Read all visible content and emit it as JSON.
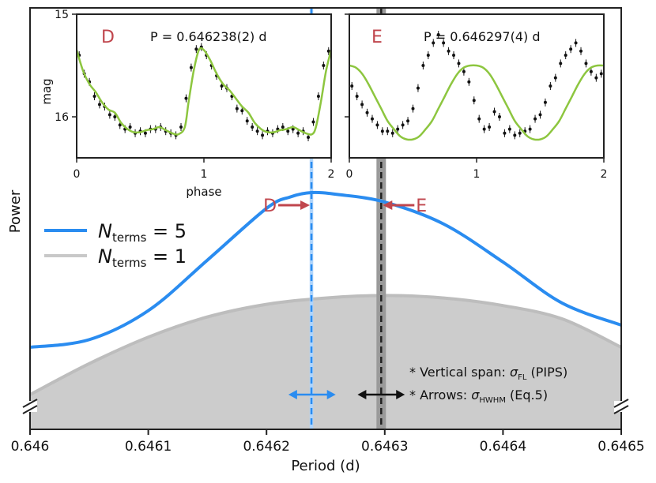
{
  "chart_data": {
    "main": {
      "type": "line",
      "xlabel": "Period (d)",
      "ylabel": "Power",
      "xlim": [
        0.646,
        0.6465
      ],
      "x_ticks": [
        0.646,
        0.6461,
        0.6462,
        0.6463,
        0.6464,
        0.6465
      ],
      "tick_labels": [
        "0.646",
        "0.6461",
        "0.6462",
        "0.6463",
        "0.6464",
        "0.6465"
      ],
      "ylim": [
        0,
        1
      ],
      "series": [
        {
          "name_parts": [
            "N",
            "terms",
            " = 5"
          ],
          "color": "#2a8cf0",
          "x": [
            0.646,
            0.64605,
            0.6461,
            0.64615,
            0.6462,
            0.64622,
            0.646238,
            0.64626,
            0.6463,
            0.64635,
            0.6464,
            0.64645,
            0.6465
          ],
          "y": [
            0.2,
            0.224,
            0.316,
            0.476,
            0.64,
            0.676,
            0.69,
            0.684,
            0.66,
            0.59,
            0.47,
            0.34,
            0.27
          ]
        },
        {
          "name_parts": [
            "N",
            "terms",
            " = 1"
          ],
          "color": "#bdbdbd",
          "fill": "#cccccc",
          "x": [
            0.646,
            0.64605,
            0.6461,
            0.64615,
            0.6462,
            0.64625,
            0.6463,
            0.64635,
            0.6464,
            0.64645,
            0.6465
          ],
          "y": [
            0.05,
            0.148,
            0.232,
            0.296,
            0.336,
            0.356,
            0.364,
            0.356,
            0.332,
            0.29,
            0.2
          ]
        }
      ],
      "annotations": {
        "D": {
          "label": "D",
          "x": 0.646238,
          "color": "#c0464d",
          "line_color": "#2a8cf0",
          "span": [
            0.6462365,
            0.6462395
          ],
          "span_color": "#aed4fb",
          "hwhm_arrow": [
            0.6462185,
            0.6462585
          ],
          "arrow_color": "#2a8cf0"
        },
        "E": {
          "label": "E",
          "x": 0.646297,
          "color": "#c0464d",
          "line_color": "#222222",
          "span": [
            0.646293,
            0.646301
          ],
          "span_color": "#9a9a9a",
          "hwhm_arrow": [
            0.646277,
            0.646317
          ],
          "arrow_color": "#111111"
        }
      },
      "notes": [
        {
          "prefix": "* Vertical span: ",
          "sym": "σ",
          "sub": "FL",
          "suffix": " (PIPS)"
        },
        {
          "prefix": "* Arrows: ",
          "sym": "σ",
          "sub": "HWHM",
          "suffix": " (Eq.5)"
        }
      ]
    },
    "insets": [
      {
        "panel": "D",
        "label": "D",
        "label_color": "#c0464d",
        "period_text": "P = 0.646238(2) d",
        "xlim": [
          0,
          2
        ],
        "x_ticks": [
          0,
          1,
          2
        ],
        "x_tick_labels": [
          "0",
          "1",
          "2"
        ],
        "xlabel": "phase",
        "ylabel": "mag",
        "ylim": [
          15.0,
          16.4
        ],
        "y_ticks": [
          15,
          16
        ],
        "y_tick_labels": [
          "15",
          "16"
        ],
        "fit_color": "#8dc63f",
        "fit": {
          "x": [
            0,
            0.05,
            0.1,
            0.15,
            0.2,
            0.25,
            0.3,
            0.35,
            0.4,
            0.45,
            0.5,
            0.55,
            0.6,
            0.65,
            0.7,
            0.75,
            0.8,
            0.85,
            0.88,
            0.92,
            0.96,
            1.0,
            1.05,
            1.1,
            1.15,
            1.2,
            1.25,
            1.3,
            1.35,
            1.4,
            1.45,
            1.5,
            1.55,
            1.6,
            1.65,
            1.7,
            1.75,
            1.8,
            1.85,
            1.88,
            1.92,
            1.96,
            2.0
          ],
          "y": [
            15.35,
            15.55,
            15.68,
            15.76,
            15.86,
            15.93,
            15.96,
            16.06,
            16.12,
            16.15,
            16.15,
            16.13,
            16.12,
            16.1,
            16.13,
            16.16,
            16.17,
            16.1,
            15.85,
            15.55,
            15.35,
            15.35,
            15.45,
            15.58,
            15.68,
            15.74,
            15.82,
            15.9,
            15.96,
            16.06,
            16.12,
            16.15,
            16.15,
            16.13,
            16.12,
            16.1,
            16.13,
            16.16,
            16.17,
            16.1,
            15.85,
            15.55,
            15.35
          ]
        },
        "points": {
          "x": [
            0.02,
            0.06,
            0.1,
            0.14,
            0.18,
            0.22,
            0.26,
            0.3,
            0.34,
            0.38,
            0.42,
            0.46,
            0.5,
            0.54,
            0.58,
            0.62,
            0.66,
            0.7,
            0.74,
            0.78,
            0.82,
            0.86,
            0.9,
            0.94,
            0.98,
            1.02,
            1.06,
            1.1,
            1.14,
            1.18,
            1.22,
            1.26,
            1.3,
            1.34,
            1.38,
            1.42,
            1.46,
            1.5,
            1.54,
            1.58,
            1.62,
            1.66,
            1.7,
            1.74,
            1.78,
            1.82,
            1.86,
            1.9,
            1.94,
            1.98
          ],
          "y": [
            15.4,
            15.58,
            15.66,
            15.8,
            15.88,
            15.9,
            15.98,
            16.0,
            16.08,
            16.12,
            16.1,
            16.16,
            16.14,
            16.16,
            16.12,
            16.12,
            16.1,
            16.14,
            16.16,
            16.18,
            16.1,
            15.82,
            15.52,
            15.34,
            15.32,
            15.4,
            15.5,
            15.6,
            15.7,
            15.72,
            15.8,
            15.92,
            15.94,
            16.04,
            16.1,
            16.14,
            16.18,
            16.14,
            16.16,
            16.12,
            16.1,
            16.14,
            16.12,
            16.16,
            16.14,
            16.2,
            16.05,
            15.8,
            15.5,
            15.36
          ]
        }
      },
      {
        "panel": "E",
        "label": "E",
        "label_color": "#c0464d",
        "period_text": "P = 0.646297(4) d",
        "xlim": [
          0,
          2
        ],
        "x_ticks": [
          0,
          1,
          2
        ],
        "x_tick_labels": [
          "0",
          "1",
          "2"
        ],
        "ylim": [
          15.0,
          16.4
        ],
        "y_ticks": [
          15,
          16
        ],
        "fit_color": "#8dc63f",
        "fit": {
          "x": [
            0,
            0.05,
            0.1,
            0.15,
            0.2,
            0.25,
            0.3,
            0.35,
            0.4,
            0.45,
            0.5,
            0.55,
            0.6,
            0.65,
            0.7,
            0.75,
            0.8,
            0.85,
            0.9,
            0.95,
            1.0,
            1.05,
            1.1,
            1.15,
            1.2,
            1.25,
            1.3,
            1.35,
            1.4,
            1.45,
            1.5,
            1.55,
            1.6,
            1.65,
            1.7,
            1.75,
            1.8,
            1.85,
            1.9,
            1.95,
            2.0
          ],
          "y": [
            15.5,
            15.52,
            15.58,
            15.68,
            15.8,
            15.92,
            16.04,
            16.12,
            16.19,
            16.22,
            16.22,
            16.19,
            16.12,
            16.04,
            15.92,
            15.8,
            15.68,
            15.58,
            15.52,
            15.5,
            15.5,
            15.52,
            15.58,
            15.68,
            15.8,
            15.92,
            16.04,
            16.12,
            16.19,
            16.22,
            16.22,
            16.19,
            16.12,
            16.04,
            15.92,
            15.8,
            15.68,
            15.58,
            15.52,
            15.5,
            15.5
          ]
        },
        "points": {
          "x": [
            0.02,
            0.06,
            0.1,
            0.14,
            0.18,
            0.22,
            0.26,
            0.3,
            0.34,
            0.38,
            0.42,
            0.46,
            0.5,
            0.54,
            0.58,
            0.62,
            0.66,
            0.7,
            0.74,
            0.78,
            0.82,
            0.86,
            0.9,
            0.94,
            0.98,
            1.02,
            1.06,
            1.1,
            1.14,
            1.18,
            1.22,
            1.26,
            1.3,
            1.34,
            1.38,
            1.42,
            1.46,
            1.5,
            1.54,
            1.58,
            1.62,
            1.66,
            1.7,
            1.74,
            1.78,
            1.82,
            1.86,
            1.9,
            1.94,
            1.98
          ],
          "y": [
            15.7,
            15.8,
            15.88,
            15.96,
            16.02,
            16.08,
            16.14,
            16.14,
            16.16,
            16.12,
            16.08,
            16.04,
            15.92,
            15.72,
            15.5,
            15.4,
            15.28,
            15.2,
            15.28,
            15.36,
            15.4,
            15.48,
            15.56,
            15.66,
            15.84,
            16.02,
            16.12,
            16.1,
            15.95,
            16.0,
            16.16,
            16.12,
            16.18,
            16.16,
            16.14,
            16.12,
            16.02,
            15.98,
            15.86,
            15.7,
            15.62,
            15.48,
            15.4,
            15.34,
            15.28,
            15.36,
            15.48,
            15.56,
            15.62,
            15.58
          ]
        }
      }
    ]
  }
}
